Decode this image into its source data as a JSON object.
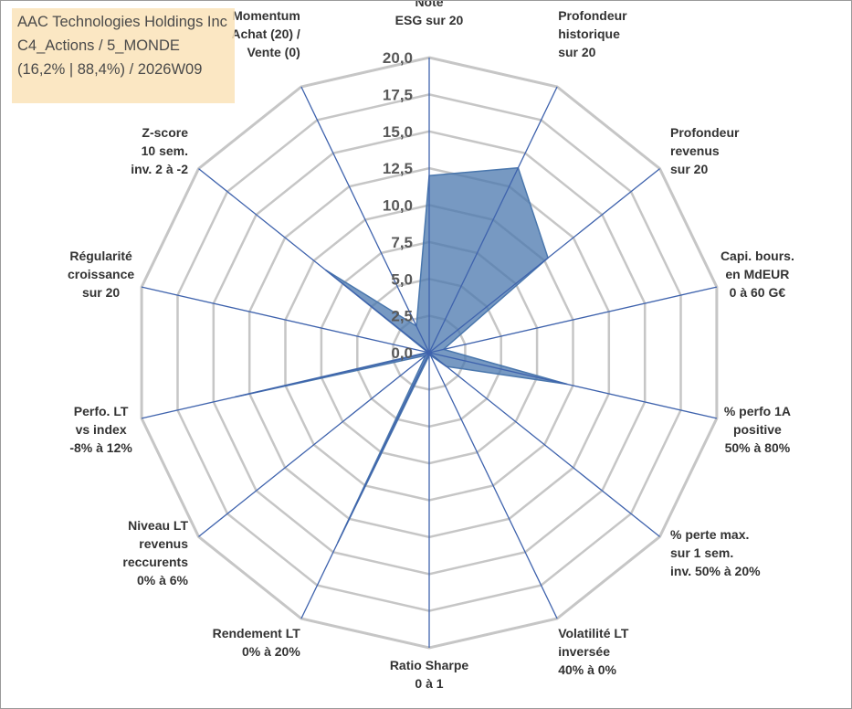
{
  "title_box": {
    "lines": [
      "AAC Technologies Holdings Inc",
      "C4_Actions / 5_MONDE",
      "(16,2% | 88,4%) / 2026W09"
    ]
  },
  "colors": {
    "fill": "#4a77ad",
    "axis": "#3f63ad",
    "grid": "#c6c6c6"
  },
  "chart_data": {
    "type": "radar",
    "rmin": 0,
    "rmax": 20,
    "tick_step": 2.5,
    "tick_labels": [
      "0,0",
      "2,5",
      "5,0",
      "7,5",
      "10,0",
      "12,5",
      "15,0",
      "17,5",
      "20,0"
    ],
    "axes": [
      [
        "Note",
        "ESG sur 20"
      ],
      [
        "Profondeur",
        "historique",
        "sur 20"
      ],
      [
        "Profondeur",
        "revenus",
        "sur 20"
      ],
      [
        "Capi. bours.",
        "en MdEUR",
        "0 à 60 G€"
      ],
      [
        "% perfo 1A",
        "positive",
        "50% à 80%"
      ],
      [
        "% perte max.",
        "sur 1 sem.",
        "inv. 50% à 20%"
      ],
      [
        "Volatilité LT",
        "inversée",
        "40% à 0%"
      ],
      [
        "Ratio Sharpe",
        "0 à 1"
      ],
      [
        "Rendement LT",
        "0% à 20%"
      ],
      [
        "Niveau LT",
        "revenus",
        "reccurents",
        "0% à 6%"
      ],
      [
        "Perfo. LT",
        "vs index",
        "-8% à 12%"
      ],
      [
        "Régularité",
        "croissance",
        "sur 20"
      ],
      [
        "Z-score",
        "10 sem.",
        "inv. 2 à -2"
      ],
      [
        "Momentum",
        "Achat (20) /",
        "Vente (0)"
      ]
    ],
    "series": [
      {
        "name": "AAC Technologies Holdings Inc",
        "values": [
          12.0,
          13.9,
          10.3,
          1.0,
          9.6,
          1.5,
          0.2,
          0.2,
          14.3,
          0.3,
          13.5,
          0.1,
          9.0,
          2.0
        ]
      }
    ]
  }
}
